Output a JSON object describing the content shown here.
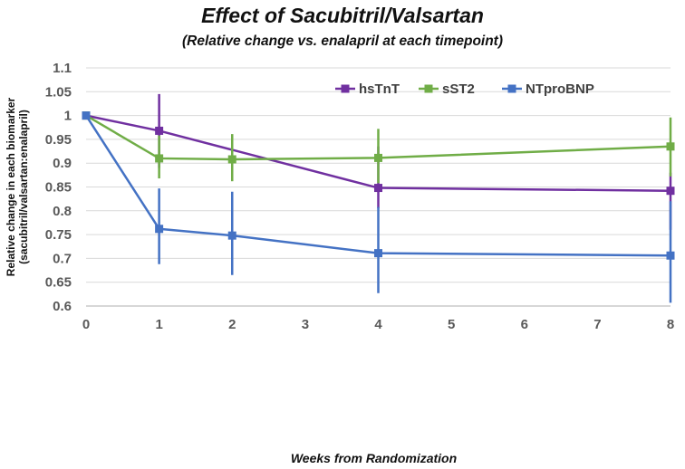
{
  "chart_data": {
    "type": "line",
    "title": "Effect of Sacubitril/Valsartan",
    "subtitle": "(Relative change vs. enalapril at each timepoint)",
    "xlabel": "Weeks from Randomization",
    "ylabel_line1": "Relative change in each biomarker",
    "ylabel_line2": "(sacubitril/valsartan:enalapril)",
    "xlim": [
      0,
      8
    ],
    "ylim": [
      0.6,
      1.1
    ],
    "x_ticks": [
      0,
      1,
      2,
      3,
      4,
      5,
      6,
      7,
      8
    ],
    "y_ticks": [
      0.6,
      0.65,
      0.7,
      0.75,
      0.8,
      0.85,
      0.9,
      0.95,
      1,
      1.05,
      1.1
    ],
    "y_tick_labels": [
      "0.6",
      "0.65",
      "0.7",
      "0.75",
      "0.8",
      "0.85",
      "0.9",
      "0.95",
      "1",
      "1.05",
      "1.1"
    ],
    "grid": "horizontal",
    "legend_position": "top-right",
    "series": [
      {
        "name": "hsTnT",
        "color": "#7030A0",
        "x": [
          0,
          1,
          4,
          8
        ],
        "y": [
          1.0,
          0.968,
          0.848,
          0.842
        ],
        "err_low": [
          1.0,
          0.89,
          0.805,
          0.76
        ],
        "err_high": [
          1.0,
          1.045,
          0.935,
          0.88
        ]
      },
      {
        "name": "sST2",
        "color": "#70AD47",
        "x": [
          0,
          1,
          2,
          4,
          8
        ],
        "y": [
          1.0,
          0.91,
          0.908,
          0.911,
          0.935
        ],
        "err_low": [
          1.0,
          0.868,
          0.862,
          0.858,
          0.872
        ],
        "err_high": [
          1.0,
          0.958,
          0.961,
          0.972,
          0.996
        ]
      },
      {
        "name": "NTproBNP",
        "color": "#4472C4",
        "x": [
          0,
          1,
          2,
          4,
          8
        ],
        "y": [
          1.0,
          0.762,
          0.748,
          0.711,
          0.706
        ],
        "err_low": [
          1.0,
          0.688,
          0.665,
          0.627,
          0.607
        ],
        "err_high": [
          1.0,
          0.847,
          0.84,
          0.808,
          0.82
        ]
      }
    ]
  }
}
